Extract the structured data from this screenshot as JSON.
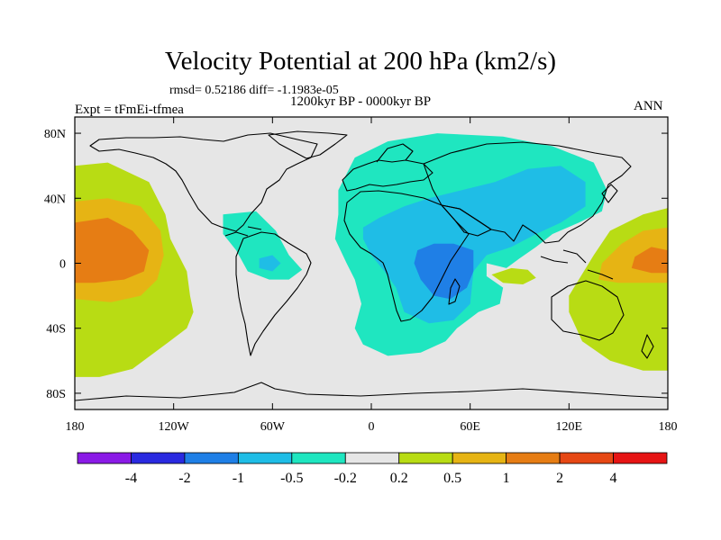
{
  "chart_data": {
    "type": "heatmap",
    "title": "Velocity Potential at 200 hPa (km2/s)",
    "stats_text": "rmsd= 0.52186 diff= -1.1983e-05",
    "period_text": "1200kyr BP - 0000kyr BP",
    "experiment_text": "Expt = tFmEi-tfmea",
    "season_text": "ANN",
    "x_ticks": [
      "180",
      "120W",
      "60W",
      "0",
      "60E",
      "120E",
      "180"
    ],
    "x_tick_values": [
      -180,
      -120,
      -60,
      0,
      60,
      120,
      180
    ],
    "y_ticks": [
      "80N",
      "40N",
      "0",
      "40S",
      "80S"
    ],
    "y_tick_values": [
      80,
      40,
      0,
      -40,
      -80
    ],
    "xlim": [
      -180,
      180
    ],
    "ylim": [
      -90,
      90
    ],
    "colorbar": {
      "levels": [
        "-4",
        "-2",
        "-1",
        "-0.5",
        "-0.2",
        "0.2",
        "0.5",
        "1",
        "2",
        "4"
      ],
      "colors": [
        "#8a1ae6",
        "#2a2ae0",
        "#1f7fe6",
        "#1fbde6",
        "#1fe6c0",
        "#e6e6e6",
        "#b8dc14",
        "#e6b414",
        "#e67d14",
        "#e64814",
        "#e61414"
      ]
    },
    "regions": [
      {
        "name": "pacific-positive-0.2",
        "level": 0.2,
        "color": "#b8dc14",
        "points": [
          [
            -180,
            60
          ],
          [
            -160,
            62
          ],
          [
            -135,
            50
          ],
          [
            -125,
            30
          ],
          [
            -122,
            15
          ],
          [
            -112,
            -5
          ],
          [
            -110,
            -20
          ],
          [
            -108,
            -30
          ],
          [
            -112,
            -40
          ],
          [
            -125,
            -50
          ],
          [
            -145,
            -65
          ],
          [
            -165,
            -70
          ],
          [
            -180,
            -70
          ]
        ]
      },
      {
        "name": "pacific-positive-0.5",
        "level": 0.5,
        "color": "#e6b414",
        "points": [
          [
            -180,
            38
          ],
          [
            -160,
            40
          ],
          [
            -140,
            35
          ],
          [
            -128,
            20
          ],
          [
            -126,
            5
          ],
          [
            -130,
            -10
          ],
          [
            -140,
            -20
          ],
          [
            -158,
            -24
          ],
          [
            -180,
            -22
          ]
        ]
      },
      {
        "name": "pacific-positive-1",
        "level": 1,
        "color": "#e67d14",
        "points": [
          [
            -180,
            25
          ],
          [
            -160,
            28
          ],
          [
            -145,
            20
          ],
          [
            -135,
            8
          ],
          [
            -138,
            -5
          ],
          [
            -150,
            -10
          ],
          [
            -168,
            -12
          ],
          [
            -180,
            -12
          ]
        ]
      },
      {
        "name": "caribbean-negative-0.2",
        "level": -0.2,
        "color": "#1fe6c0",
        "points": [
          [
            -90,
            30
          ],
          [
            -70,
            32
          ],
          [
            -58,
            20
          ],
          [
            -50,
            5
          ],
          [
            -42,
            -4
          ],
          [
            -50,
            -10
          ],
          [
            -62,
            -10
          ],
          [
            -75,
            -5
          ],
          [
            -82,
            8
          ],
          [
            -90,
            18
          ]
        ]
      },
      {
        "name": "caribbean-negative-0.5",
        "level": -0.5,
        "color": "#1fbde6",
        "points": [
          [
            -68,
            3
          ],
          [
            -60,
            5
          ],
          [
            -55,
            0
          ],
          [
            -60,
            -5
          ],
          [
            -68,
            -3
          ]
        ]
      },
      {
        "name": "afroasia-negative-0.2",
        "level": -0.2,
        "color": "#1fe6c0",
        "points": [
          [
            -20,
            45
          ],
          [
            -10,
            65
          ],
          [
            10,
            75
          ],
          [
            40,
            80
          ],
          [
            80,
            78
          ],
          [
            110,
            72
          ],
          [
            135,
            62
          ],
          [
            143,
            45
          ],
          [
            140,
            32
          ],
          [
            126,
            25
          ],
          [
            110,
            18
          ],
          [
            100,
            10
          ],
          [
            90,
            3
          ],
          [
            82,
            -3
          ],
          [
            70,
            0
          ],
          [
            70,
            -8
          ],
          [
            80,
            -15
          ],
          [
            78,
            -25
          ],
          [
            65,
            -30
          ],
          [
            52,
            -40
          ],
          [
            45,
            -48
          ],
          [
            30,
            -55
          ],
          [
            10,
            -57
          ],
          [
            -5,
            -50
          ],
          [
            -10,
            -40
          ],
          [
            -6,
            -25
          ],
          [
            -10,
            -10
          ],
          [
            -15,
            0
          ],
          [
            -22,
            15
          ],
          [
            -20,
            30
          ]
        ]
      },
      {
        "name": "afroasia-negative-0.5",
        "level": -0.5,
        "color": "#1fbde6",
        "points": [
          [
            -5,
            22
          ],
          [
            5,
            28
          ],
          [
            20,
            35
          ],
          [
            35,
            40
          ],
          [
            55,
            45
          ],
          [
            75,
            50
          ],
          [
            95,
            58
          ],
          [
            115,
            60
          ],
          [
            130,
            50
          ],
          [
            130,
            35
          ],
          [
            115,
            25
          ],
          [
            100,
            18
          ],
          [
            85,
            10
          ],
          [
            70,
            5
          ],
          [
            62,
            -5
          ],
          [
            60,
            -25
          ],
          [
            50,
            -35
          ],
          [
            35,
            -37
          ],
          [
            20,
            -30
          ],
          [
            15,
            -15
          ],
          [
            8,
            -5
          ],
          [
            0,
            5
          ],
          [
            -5,
            15
          ]
        ]
      },
      {
        "name": "afroasia-negative-1",
        "level": -1,
        "color": "#1f7fe6",
        "points": [
          [
            28,
            8
          ],
          [
            38,
            12
          ],
          [
            50,
            12
          ],
          [
            62,
            8
          ],
          [
            62,
            -5
          ],
          [
            58,
            -15
          ],
          [
            48,
            -22
          ],
          [
            38,
            -20
          ],
          [
            30,
            -10
          ],
          [
            26,
            0
          ]
        ]
      },
      {
        "name": "indian-ocean-positive-0.2",
        "level": 0.2,
        "color": "#b8dc14",
        "points": [
          [
            73,
            -7
          ],
          [
            85,
            -3
          ],
          [
            95,
            -4
          ],
          [
            100,
            -9
          ],
          [
            92,
            -13
          ],
          [
            80,
            -12
          ]
        ]
      },
      {
        "name": "westpac-positive-0.2",
        "level": 0.2,
        "color": "#b8dc14",
        "points": [
          [
            180,
            34
          ],
          [
            165,
            30
          ],
          [
            145,
            20
          ],
          [
            135,
            5
          ],
          [
            120,
            -20
          ],
          [
            120,
            -30
          ],
          [
            128,
            -48
          ],
          [
            145,
            -60
          ],
          [
            165,
            -66
          ],
          [
            180,
            -66
          ]
        ]
      },
      {
        "name": "westpac-positive-0.5",
        "level": 0.5,
        "color": "#e6b414",
        "points": [
          [
            180,
            22
          ],
          [
            165,
            20
          ],
          [
            152,
            12
          ],
          [
            140,
            0
          ],
          [
            138,
            -10
          ],
          [
            150,
            -12
          ],
          [
            168,
            -12
          ],
          [
            180,
            -12
          ]
        ]
      },
      {
        "name": "westpac-positive-1",
        "level": 1,
        "color": "#e67d14",
        "points": [
          [
            180,
            8
          ],
          [
            170,
            10
          ],
          [
            160,
            4
          ],
          [
            158,
            -3
          ],
          [
            170,
            -6
          ],
          [
            180,
            -6
          ]
        ]
      }
    ]
  }
}
